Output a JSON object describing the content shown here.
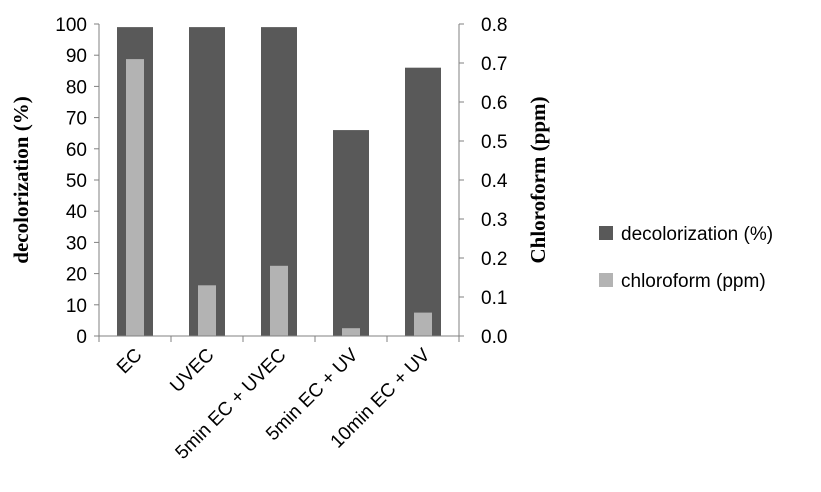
{
  "chart_data": {
    "type": "bar",
    "categories": [
      "EC",
      "UVEC",
      "5min EC + UVEC",
      "5min EC + UV",
      "10min EC + UV"
    ],
    "series": [
      {
        "name": "decolorization (%)",
        "axis": "left",
        "values": [
          99,
          99,
          99,
          66,
          86
        ],
        "color": "#595959"
      },
      {
        "name": "chloroform (ppm)",
        "axis": "right",
        "values": [
          0.71,
          0.13,
          0.18,
          0.02,
          0.06
        ],
        "color": "#b3b3b3"
      }
    ],
    "ylabel": "decolorization (%)",
    "ylabel_right": "Chloroform (ppm)",
    "ylim": [
      0,
      100
    ],
    "ylim_right": [
      0,
      0.8
    ],
    "y_ticks": [
      "0",
      "10",
      "20",
      "30",
      "40",
      "50",
      "60",
      "70",
      "80",
      "90",
      "100"
    ],
    "y_ticks_right": [
      "0.0",
      "0.1",
      "0.2",
      "0.3",
      "0.4",
      "0.5",
      "0.6",
      "0.7",
      "0.8"
    ],
    "grid": false,
    "legend": "right"
  }
}
